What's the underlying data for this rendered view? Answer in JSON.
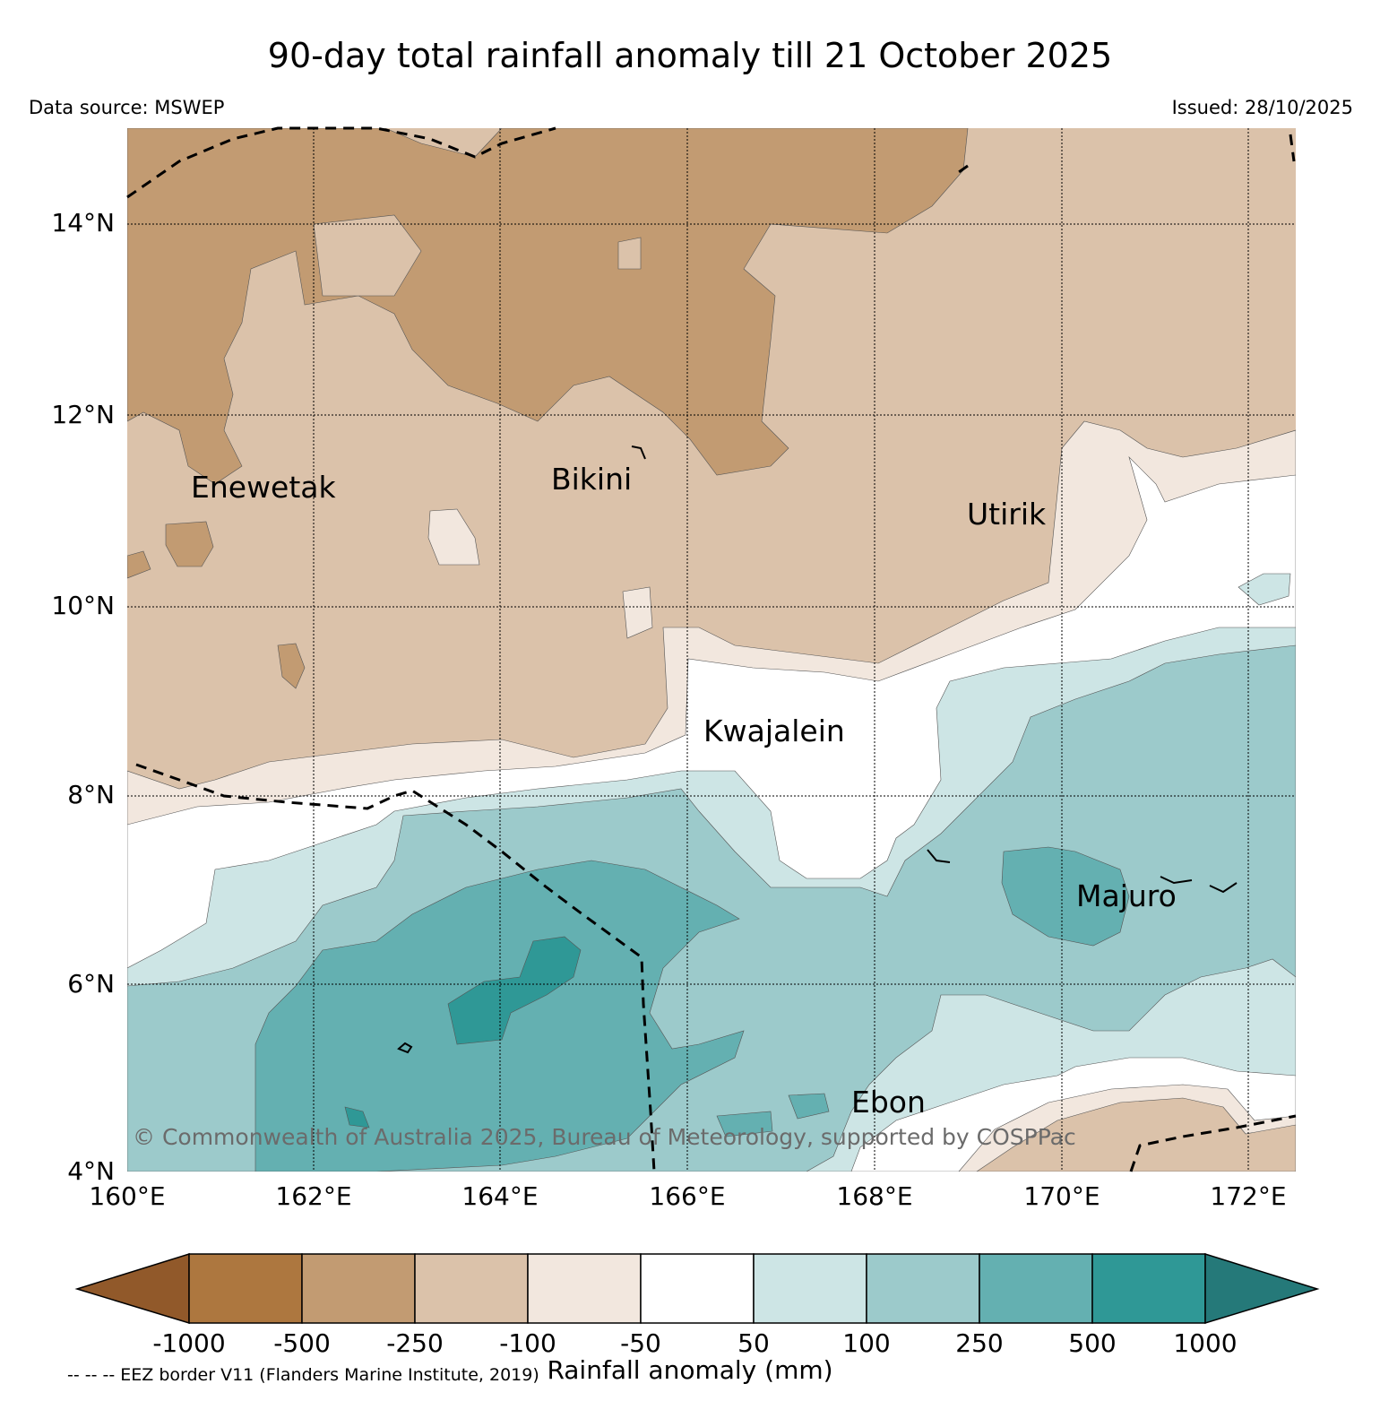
{
  "header": {
    "title": "90-day total rainfall anomaly till 21 October 2025",
    "data_source": "Data source: MSWEP",
    "issued": "Issued: 28/10/2025"
  },
  "map": {
    "lon_range": [
      160,
      172.5
    ],
    "lat_range": [
      4,
      15
    ],
    "lat_labels": [
      "4°N",
      "6°N",
      "8°N",
      "10°N",
      "12°N",
      "14°N"
    ],
    "lon_labels": [
      "160°E",
      "162°E",
      "164°E",
      "166°E",
      "168°E",
      "170°E",
      "172°E"
    ],
    "places": [
      {
        "name": "Enewetak",
        "lon": 160.7,
        "lat": 11.3
      },
      {
        "name": "Bikini",
        "lon": 164.5,
        "lat": 11.35
      },
      {
        "name": "Utirik",
        "lon": 168.95,
        "lat": 10.95
      },
      {
        "name": "Kwajalein",
        "lon": 166.2,
        "lat": 8.65
      },
      {
        "name": "Majuro",
        "lon": 170.15,
        "lat": 6.9
      },
      {
        "name": "Ebon",
        "lon": 167.7,
        "lat": 4.7
      }
    ],
    "copyright": "© Commonwealth of Australia 2025, Bureau of Meteorology, supported by COSPPac",
    "eez_note": "-- -- -- EEZ border V11 (Flanders Marine Institute, 2019)"
  },
  "colorbar": {
    "label": "Rainfall anomaly (mm)",
    "ticks": [
      "-1000",
      "-500",
      "-250",
      "-100",
      "-50",
      "50",
      "100",
      "250",
      "500",
      "1000"
    ],
    "colors": [
      "#91592a",
      "#ad773f",
      "#c29b72",
      "#dbc2aa",
      "#f2e7de",
      "#ffffff",
      "#cde5e5",
      "#9ccacb",
      "#64b0b1",
      "#2f9896",
      "#257979"
    ]
  }
}
